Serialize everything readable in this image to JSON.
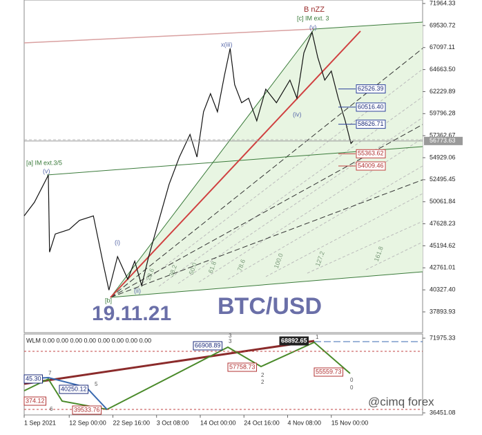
{
  "chart_data": [
    {
      "type": "line",
      "title": "BTC/USD",
      "color": "#111111",
      "x": [
        0,
        2.5,
        5.9,
        6.2,
        7.6,
        11,
        13.5,
        16.9,
        19.4,
        20.7,
        22.8,
        25.3,
        27,
        28.7,
        30.4,
        32.9,
        35.4,
        37.9,
        40.5,
        42.2,
        43.8,
        45.5,
        47.2,
        48.9,
        50.3,
        51.4,
        53.1,
        54.8,
        56.8,
        59,
        61.6,
        64.9,
        66.6,
        68.3,
        70.3,
        71.7,
        73.4,
        75,
        76.7,
        78.4,
        79.8,
        80.4
      ],
      "values": [
        48500,
        50000,
        53000,
        44500,
        46500,
        47000,
        48000,
        48500,
        43000,
        40300,
        44000,
        41500,
        43500,
        40800,
        44000,
        48000,
        52000,
        55000,
        57500,
        55000,
        60000,
        62000,
        60000,
        64000,
        67000,
        63000,
        61000,
        61500,
        59000,
        62500,
        61000,
        63500,
        61500,
        66500,
        68800,
        66000,
        63500,
        64500,
        61500,
        59000,
        56500,
        56800
      ],
      "xlim": [
        0,
        97.3
      ],
      "ylim": [
        35600,
        72350
      ],
      "xticks": [
        {
          "value": 0,
          "label": "1 Sep 2021"
        },
        {
          "value": 11,
          "label": "12 Sep 00:00"
        },
        {
          "value": 21.67,
          "label": "22 Sep 16:00"
        },
        {
          "value": 32.33,
          "label": "3 Oct 08:00"
        },
        {
          "value": 43,
          "label": "14 Oct 00:00"
        },
        {
          "value": 53.67,
          "label": "24 Oct 16:00"
        },
        {
          "value": 64.33,
          "label": "4 Nov 08:00"
        },
        {
          "value": 75,
          "label": "15 Nov 00:00"
        }
      ],
      "yticks": [
        71964.33,
        69530.72,
        67097.11,
        {
          "value": 64663.5,
          "label": "64663.50"
        },
        62229.89,
        59796.28,
        57362.67,
        54929.06,
        52495.45,
        50061.84,
        47628.23,
        45194.62,
        42761.01,
        {
          "value": 40327.4,
          "label": "40327.40"
        },
        37893.93
      ],
      "current_price": 56773.63,
      "target_levels": [
        62526.39,
        {
          "value": 60516.4,
          "label": "60516.40"
        },
        58626.71
      ],
      "support_levels": [
        55363.62,
        54009.46
      ],
      "annotations": [
        "B nZZ",
        "[c] IM ext. 3",
        "(v)",
        "x(iii)",
        "(iv)",
        "[a] IM ext.3/5",
        "(v)",
        "(i)",
        "(ii)",
        "[b]"
      ],
      "fib_labels": [
        "23.6",
        "38.2",
        "50.0",
        "61.8",
        "78.6",
        "100.0",
        "127.2",
        "161.8"
      ],
      "date_label": "19.11.21"
    },
    {
      "type": "indicator",
      "legend_text": "WLM 0.00 0.00 0.00 0.00 0.00 0.00 0.00 0.00",
      "ylim": [
        35464,
        74607
      ],
      "yticks": [
        71975.33,
        36451.08
      ],
      "labels": [
        "66908.89",
        "68892.65",
        "57758.73",
        "55559.73",
        "45.30",
        "40250.12",
        "374.12",
        "39533.76"
      ],
      "wave_numbers": [
        "3",
        "3",
        "1",
        "2",
        "2",
        "7",
        "5",
        "6",
        "0",
        "0"
      ],
      "watermark": "@cimq forex"
    }
  ]
}
